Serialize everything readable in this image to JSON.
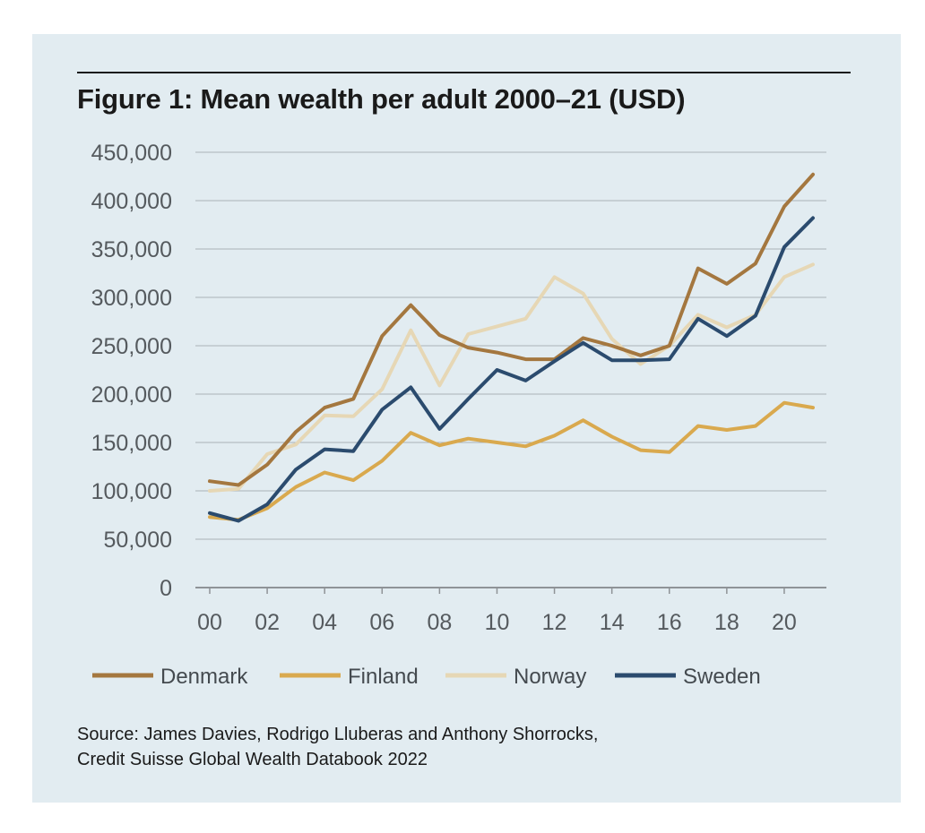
{
  "title": "Figure 1: Mean wealth per adult 2000–21 (USD)",
  "source": {
    "line1": "Source: James Davies, Rodrigo Lluberas and Anthony Shorrocks,",
    "line2": "Credit Suisse Global Wealth Databook 2022"
  },
  "chart_data": {
    "type": "line",
    "title": "Figure 1: Mean wealth per adult 2000–21 (USD)",
    "xlabel": "",
    "ylabel": "",
    "x": [
      0,
      1,
      2,
      3,
      4,
      5,
      6,
      7,
      8,
      9,
      10,
      11,
      12,
      13,
      14,
      15,
      16,
      17,
      18,
      19,
      20,
      21
    ],
    "xlim": [
      0,
      21
    ],
    "ylim": [
      0,
      450000
    ],
    "x_ticks": [
      {
        "value": 0,
        "label": "00"
      },
      {
        "value": 2,
        "label": "02"
      },
      {
        "value": 4,
        "label": "04"
      },
      {
        "value": 6,
        "label": "06"
      },
      {
        "value": 8,
        "label": "08"
      },
      {
        "value": 10,
        "label": "10"
      },
      {
        "value": 12,
        "label": "12"
      },
      {
        "value": 14,
        "label": "14"
      },
      {
        "value": 16,
        "label": "16"
      },
      {
        "value": 18,
        "label": "18"
      },
      {
        "value": 20,
        "label": "20"
      }
    ],
    "y_ticks": [
      {
        "value": 0,
        "label": "0"
      },
      {
        "value": 50000,
        "label": "50,000"
      },
      {
        "value": 100000,
        "label": "100,000"
      },
      {
        "value": 150000,
        "label": "150,000"
      },
      {
        "value": 200000,
        "label": "200,000"
      },
      {
        "value": 250000,
        "label": "250,000"
      },
      {
        "value": 300000,
        "label": "300,000"
      },
      {
        "value": 350000,
        "label": "350,000"
      },
      {
        "value": 400000,
        "label": "400,000"
      },
      {
        "value": 450000,
        "label": "450,000"
      }
    ],
    "grid": "horizontal",
    "legend_position": "bottom",
    "series": [
      {
        "name": "Norway",
        "color": "#e6d7b5",
        "values": [
          100000,
          102000,
          138000,
          148000,
          178000,
          177000,
          205000,
          266000,
          209000,
          262000,
          270000,
          278000,
          321000,
          304000,
          257000,
          231000,
          250000,
          282000,
          269000,
          282000,
          321000,
          334000
        ]
      },
      {
        "name": "Finland",
        "color": "#d9a94e",
        "values": [
          73000,
          70000,
          82000,
          104000,
          119000,
          111000,
          131000,
          160000,
          147000,
          154000,
          150000,
          146000,
          157000,
          173000,
          156000,
          142000,
          140000,
          167000,
          163000,
          167000,
          191000,
          186000
        ]
      },
      {
        "name": "Denmark",
        "color": "#a4773f",
        "values": [
          110000,
          106000,
          127000,
          161000,
          186000,
          195000,
          260000,
          292000,
          261000,
          248000,
          243000,
          236000,
          236000,
          258000,
          250000,
          240000,
          250000,
          330000,
          314000,
          335000,
          394000,
          427000
        ]
      },
      {
        "name": "Sweden",
        "color": "#2b4b6e",
        "values": [
          77000,
          69000,
          86000,
          122000,
          143000,
          141000,
          184000,
          207000,
          164000,
          195000,
          225000,
          214000,
          234000,
          253000,
          235000,
          235000,
          236000,
          278000,
          260000,
          281000,
          352000,
          382000
        ]
      }
    ],
    "legend_order": [
      "Denmark",
      "Finland",
      "Norway",
      "Sweden"
    ]
  }
}
